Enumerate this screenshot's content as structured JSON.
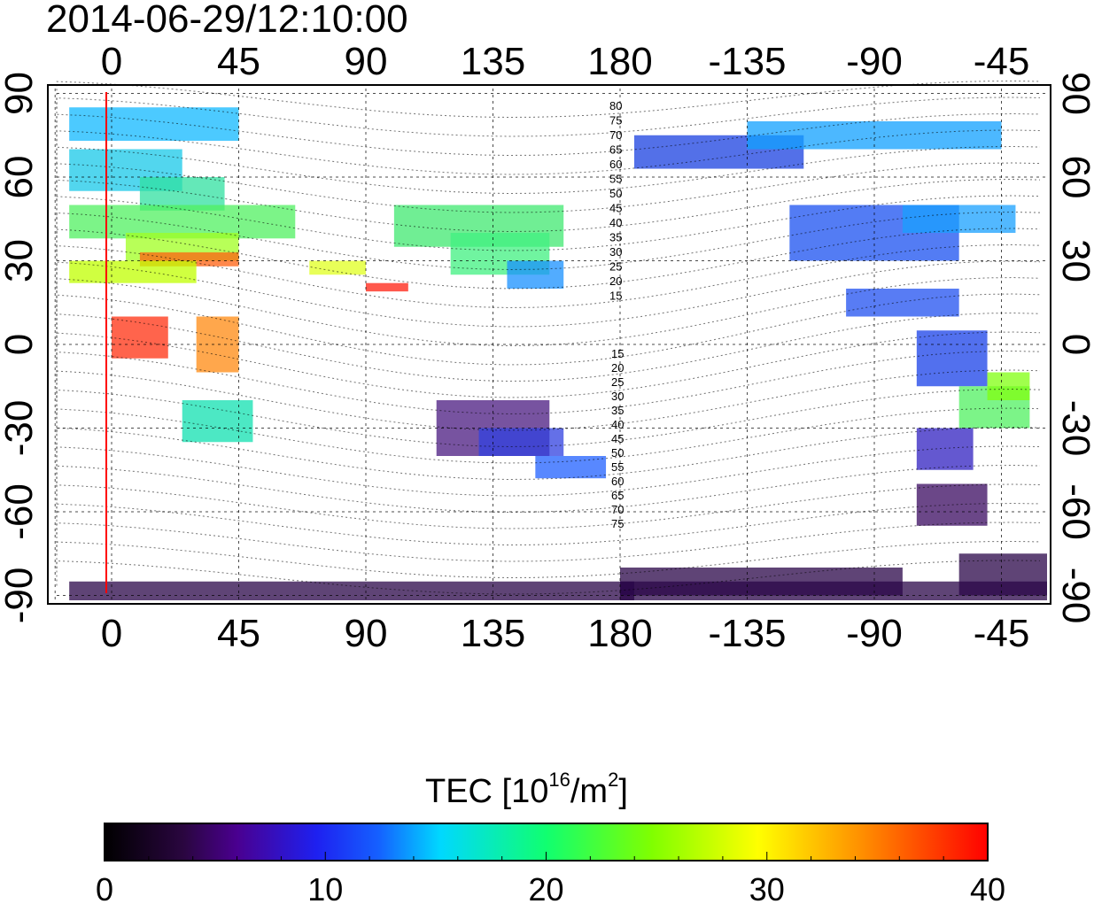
{
  "title": "2014-06-29/12:10:00",
  "map": {
    "top_lon_labels": [
      "0",
      "45",
      "90",
      "135",
      "180",
      "-135",
      "-90",
      "-45"
    ],
    "bottom_lon_labels": [
      "0",
      "45",
      "90",
      "135",
      "180",
      "-135",
      "-90",
      "-45"
    ],
    "left_lat_labels": [
      "90",
      "60",
      "30",
      "0",
      "-30",
      "-60",
      "-90"
    ],
    "right_lat_labels": [
      "90",
      "60",
      "30",
      "0",
      "-30",
      "-60",
      "-90"
    ],
    "contour_labels_north": [
      "80",
      "75",
      "70",
      "65",
      "60",
      "55",
      "50",
      "45",
      "40",
      "35",
      "30",
      "25",
      "20",
      "15"
    ],
    "contour_labels_south": [
      "15",
      "20",
      "25",
      "30",
      "35",
      "40",
      "45",
      "50",
      "55",
      "60",
      "65",
      "70",
      "75"
    ],
    "marker_line_color": "#ff0000",
    "grid": "dashed"
  },
  "colorbar": {
    "title_prefix": "TEC  [10",
    "title_sup1": "16",
    "title_mid": "/m",
    "title_sup2": "2",
    "title_suffix": "]",
    "min": 0,
    "max": 40,
    "tick_labels": [
      "0",
      "10",
      "20",
      "30",
      "40"
    ],
    "colors": [
      "#000000",
      "#3a0a5a",
      "#4a0090",
      "#1f1ff0",
      "#1a7cff",
      "#00e0ff",
      "#3cff60",
      "#9cff00",
      "#ffff00",
      "#ff8000",
      "#ff0000"
    ]
  }
}
